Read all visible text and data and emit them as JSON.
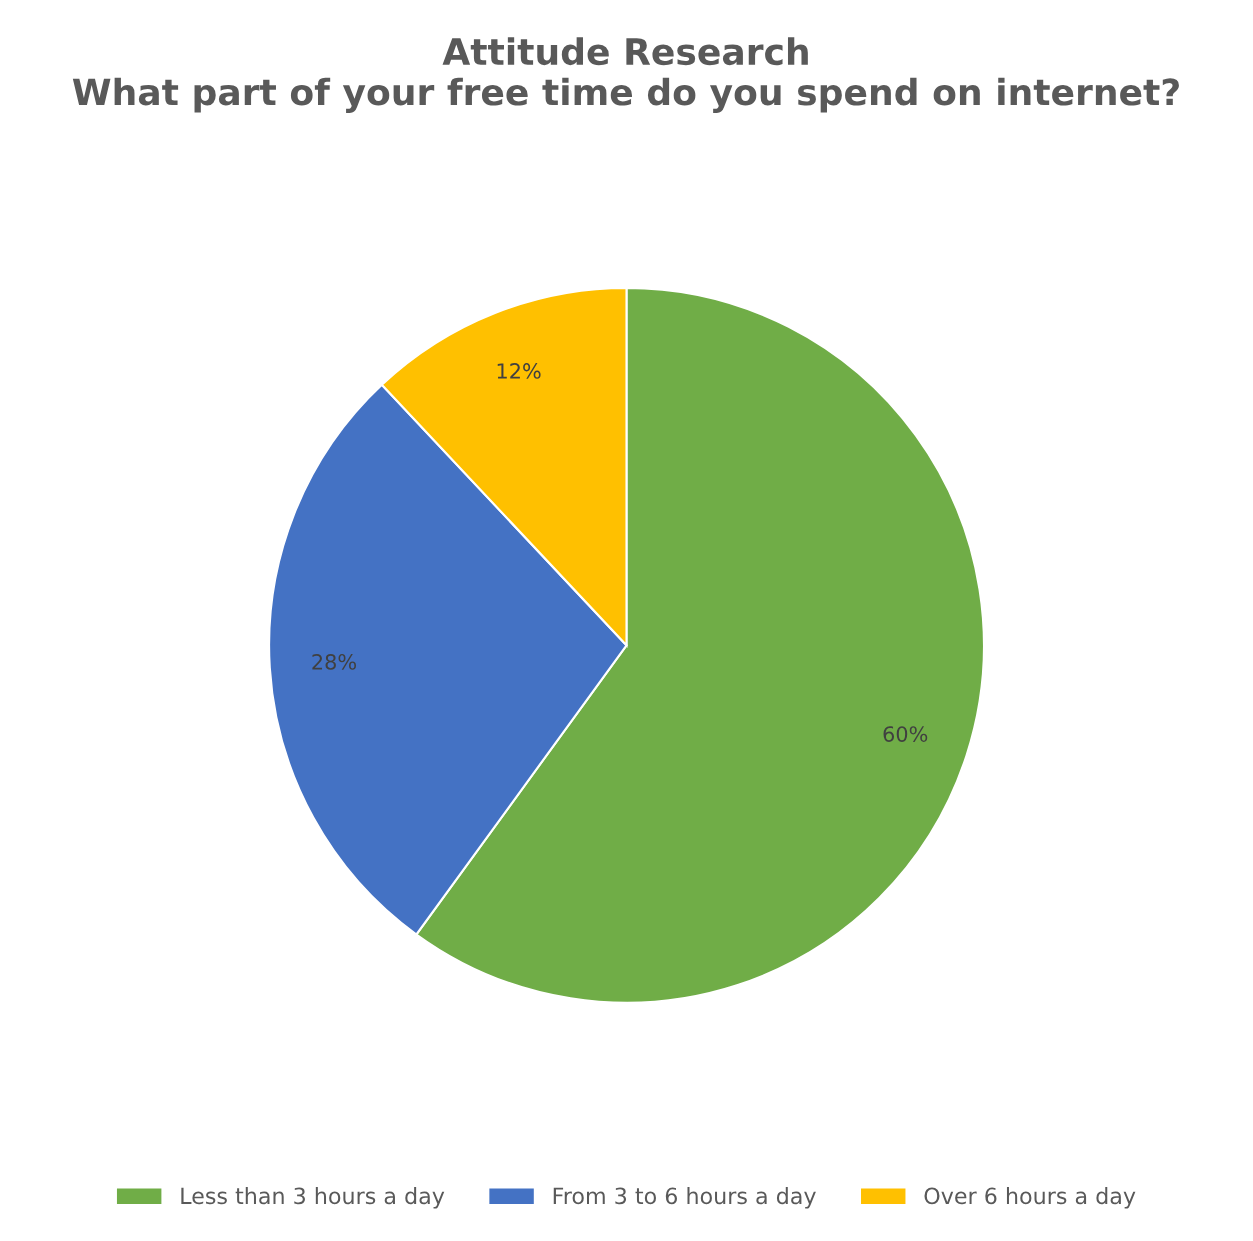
{
  "chart_data": {
    "type": "pie",
    "title": "Attitude Research\nWhat part of your free time do you spend on internet?",
    "categories": [
      "Less than 3 hours a day",
      "From 3 to 6 hours a day",
      "Over 6 hours a day"
    ],
    "values": [
      60,
      28,
      12
    ],
    "colors": [
      "#70ad47",
      "#4472c4",
      "#ffc000"
    ],
    "value_labels": [
      "60%",
      "28%",
      "12%"
    ],
    "legend": "bottom"
  }
}
